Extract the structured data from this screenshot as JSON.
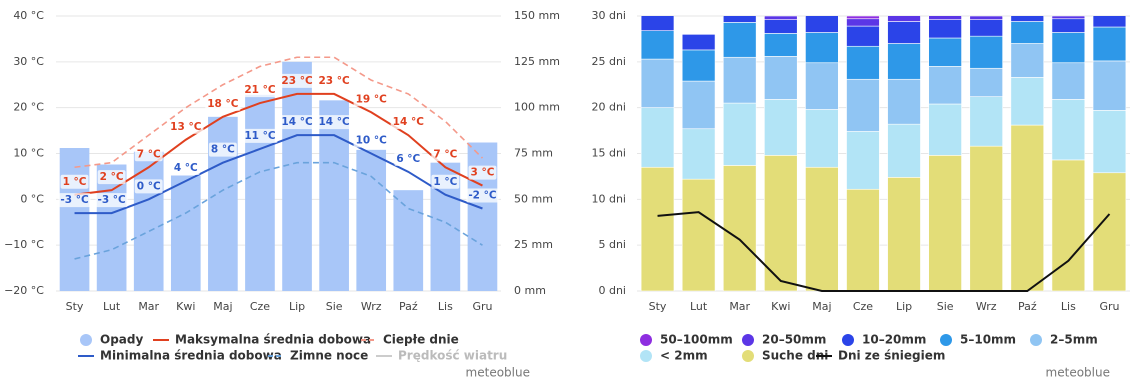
{
  "chart_data": [
    {
      "type": "combo",
      "categories": [
        "Sty",
        "Lut",
        "Mar",
        "Kwi",
        "Maj",
        "Cze",
        "Lip",
        "Sie",
        "Wrz",
        "Paź",
        "Lis",
        "Gru"
      ],
      "ylim": [
        -20,
        40
      ],
      "yticks": [
        {
          "value": -20,
          "label": "−20 °C"
        },
        {
          "value": -10,
          "label": "−10 °C"
        },
        {
          "value": 0,
          "label": "0 °C"
        },
        {
          "value": 10,
          "label": "10 °C"
        },
        {
          "value": 20,
          "label": "20 °C"
        },
        {
          "value": 30,
          "label": "30 °C"
        },
        {
          "value": 40,
          "label": "40 °C"
        }
      ],
      "y2lim": [
        0,
        150
      ],
      "y2ticks": [
        {
          "value": 0,
          "label": "0 mm"
        },
        {
          "value": 25,
          "label": "25 mm"
        },
        {
          "value": 50,
          "label": "50 mm"
        },
        {
          "value": 75,
          "label": "75 mm"
        },
        {
          "value": 100,
          "label": "100 mm"
        },
        {
          "value": 125,
          "label": "125 mm"
        },
        {
          "value": 150,
          "label": "150 mm"
        }
      ],
      "grid": true,
      "series": [
        {
          "name": "Opady",
          "kind": "bar",
          "axis": "y2",
          "color": "#a8c6f8",
          "values": [
            78,
            69,
            76,
            63,
            95,
            107,
            125,
            104,
            77,
            55,
            70,
            81
          ]
        },
        {
          "name": "Maksymalna średnia dobowa",
          "kind": "line",
          "color": "#e0401f",
          "values": [
            1,
            2,
            7,
            13,
            18,
            21,
            23,
            23,
            19,
            14,
            7,
            3
          ],
          "value_labels": [
            "1 °C",
            "2 °C",
            "7 °C",
            "13 °C",
            "18 °C",
            "21 °C",
            "23 °C",
            "23 °C",
            "19 °C",
            "14 °C",
            "7 °C",
            "3 °C"
          ]
        },
        {
          "name": "Ciepłe dnie",
          "kind": "line",
          "dash": true,
          "color": "#f4998a",
          "values": [
            7,
            8,
            14,
            20,
            25,
            29,
            31,
            31,
            26,
            23,
            17,
            9
          ]
        },
        {
          "name": "Minimalna średnia dobowa",
          "kind": "line",
          "color": "#2e5bc8",
          "values": [
            -3,
            -3,
            0,
            4,
            8,
            11,
            14,
            14,
            10,
            6,
            1,
            -2
          ],
          "value_labels": [
            "-3 °C",
            "-3 °C",
            "0 °C",
            "4 °C",
            "8 °C",
            "11 °C",
            "14 °C",
            "14 °C",
            "10 °C",
            "6 °C",
            "1 °C",
            "-2 °C"
          ]
        },
        {
          "name": "Zimne noce",
          "kind": "line",
          "dash": true,
          "color": "#6aa3dc",
          "values": [
            -13,
            -11,
            -7,
            -3,
            2,
            6,
            8,
            8,
            5,
            -2,
            -5,
            -10
          ]
        },
        {
          "name": "Prędkość wiatru",
          "kind": "line",
          "hidden": true,
          "color": "#cccccc",
          "values": [
            null,
            null,
            null,
            null,
            null,
            null,
            null,
            null,
            null,
            null,
            null,
            null
          ]
        }
      ],
      "credit": "meteoblue"
    },
    {
      "type": "stacked_bar",
      "categories": [
        "Sty",
        "Lut",
        "Mar",
        "Kwi",
        "Maj",
        "Cze",
        "Lip",
        "Sie",
        "Wrz",
        "Paź",
        "Lis",
        "Gru"
      ],
      "ylim": [
        0,
        30
      ],
      "yticks": [
        {
          "value": 0,
          "label": "0 dni"
        },
        {
          "value": 5,
          "label": "5 dni"
        },
        {
          "value": 10,
          "label": "10 dni"
        },
        {
          "value": 15,
          "label": "15 dni"
        },
        {
          "value": 20,
          "label": "20 dni"
        },
        {
          "value": 25,
          "label": "25 dni"
        },
        {
          "value": 30,
          "label": "30 dni"
        }
      ],
      "grid": true,
      "series": [
        {
          "name": "50–100mm",
          "kind": "bar",
          "color": "#8e2ee0",
          "values": [
            0,
            0,
            0.2,
            0,
            0,
            0.3,
            0.3,
            0.3,
            0,
            0,
            0,
            0
          ]
        },
        {
          "name": "20–50mm",
          "kind": "bar",
          "color": "#5b36e6",
          "values": [
            0,
            0,
            0.3,
            0.4,
            0.4,
            0.8,
            1.3,
            1.1,
            0.4,
            0.2,
            0.3,
            0.2
          ]
        },
        {
          "name": "10–20mm",
          "kind": "bar",
          "color": "#2b44e8",
          "values": [
            2.6,
            1.7,
            1.2,
            1.5,
            2.4,
            2.2,
            2.4,
            2.0,
            1.8,
            1.3,
            1.5,
            2.0
          ]
        },
        {
          "name": "5–10mm",
          "kind": "bar",
          "color": "#2e98e8",
          "values": [
            3.1,
            3.4,
            3.8,
            2.5,
            3.3,
            3.6,
            3.9,
            3.1,
            3.5,
            2.4,
            3.3,
            3.7
          ]
        },
        {
          "name": "2–5mm",
          "kind": "bar",
          "color": "#90c5f3",
          "values": [
            5.3,
            5.2,
            5.0,
            4.7,
            5.1,
            5.7,
            4.9,
            4.1,
            3.1,
            3.7,
            4.0,
            5.4
          ]
        },
        {
          "name": "< 2mm",
          "kind": "bar",
          "color": "#b2e4f6",
          "values": [
            6.5,
            5.5,
            6.8,
            6.1,
            6.3,
            6.3,
            5.8,
            5.6,
            5.4,
            5.2,
            6.6,
            6.8
          ]
        },
        {
          "name": "Suche dni",
          "kind": "bar",
          "color": "#e3dd78",
          "values": [
            13.5,
            12.2,
            13.7,
            14.8,
            13.5,
            11.1,
            12.4,
            14.8,
            15.8,
            18.1,
            14.3,
            12.9
          ]
        },
        {
          "name": "Dni ze śniegiem",
          "kind": "line",
          "color": "#111111",
          "values": [
            8.2,
            8.6,
            5.6,
            1.1,
            0,
            0,
            0,
            0,
            0,
            0,
            3.3,
            8.4
          ]
        }
      ],
      "credit": "meteoblue"
    }
  ]
}
